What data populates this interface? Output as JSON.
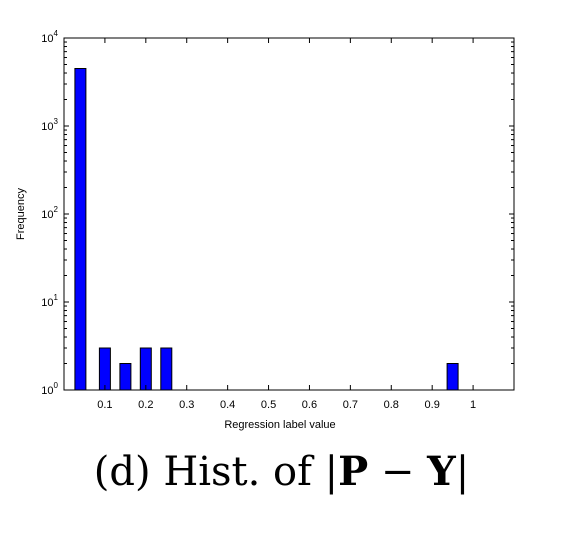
{
  "chart_data": {
    "type": "bar",
    "title": "",
    "xlabel": "Regression label value",
    "ylabel": "Frequency",
    "yscale": "log",
    "ylim": [
      1,
      10000
    ],
    "xlim": [
      0,
      1.1
    ],
    "grid": false,
    "bar_color": "#0000ff",
    "x_ticks": [
      "0.1",
      "0.2",
      "0.3",
      "0.4",
      "0.5",
      "0.6",
      "0.7",
      "0.8",
      "0.9",
      "1"
    ],
    "x_tick_values": [
      0.1,
      0.2,
      0.3,
      0.4,
      0.5,
      0.6,
      0.7,
      0.8,
      0.9,
      1.0
    ],
    "y_ticks": [
      {
        "value": 1,
        "base": "10",
        "exp": "0"
      },
      {
        "value": 10,
        "base": "10",
        "exp": "1"
      },
      {
        "value": 100,
        "base": "10",
        "exp": "2"
      },
      {
        "value": 1000,
        "base": "10",
        "exp": "3"
      },
      {
        "value": 10000,
        "base": "10",
        "exp": "4"
      }
    ],
    "bars": [
      {
        "x": 0.04,
        "value": 4500
      },
      {
        "x": 0.1,
        "value": 3
      },
      {
        "x": 0.15,
        "value": 2
      },
      {
        "x": 0.2,
        "value": 3
      },
      {
        "x": 0.25,
        "value": 3
      },
      {
        "x": 0.95,
        "value": 2
      }
    ]
  },
  "caption": {
    "prefix": "(d) Hist. of |",
    "p": "P",
    "minus": " − ",
    "y": "Y",
    "suffix": "|"
  }
}
